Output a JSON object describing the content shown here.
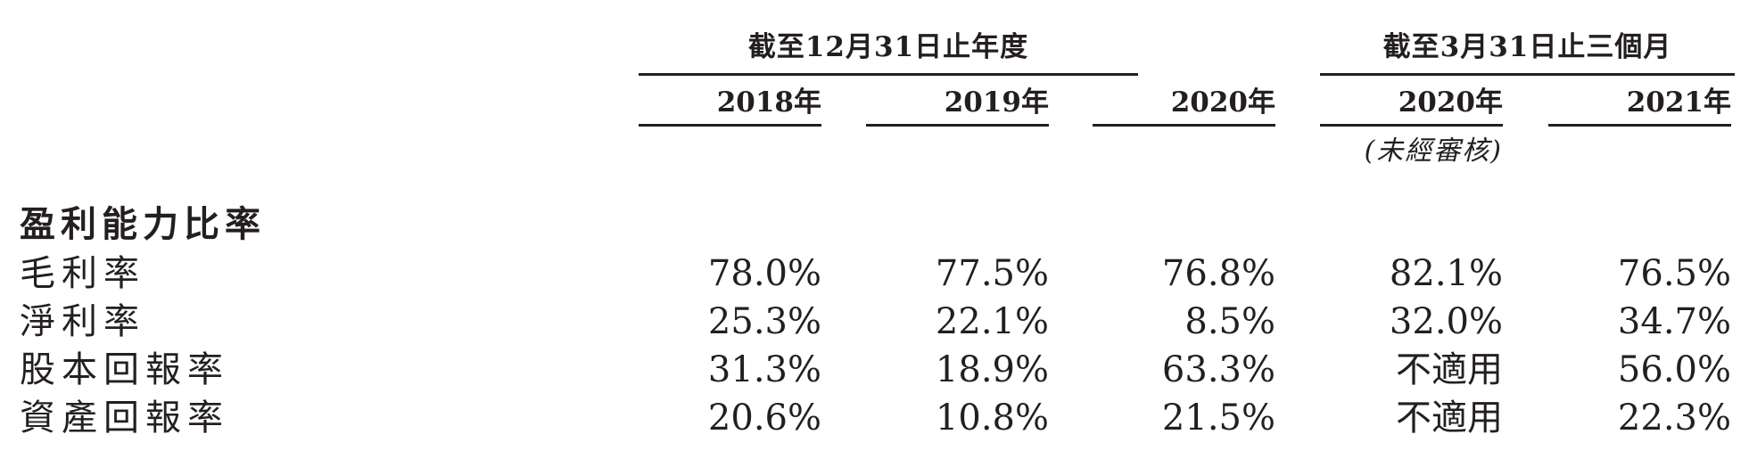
{
  "header": {
    "group_annual": "截至12月31日止年度",
    "group_quarter": "截至3月31日止三個月",
    "years": [
      "2018年",
      "2019年",
      "2020年",
      "2020年",
      "2021年"
    ],
    "unaudited_note": "(未經審核)"
  },
  "section": {
    "title": "盈利能力比率"
  },
  "rows": [
    {
      "label": "毛利率",
      "values": [
        "78.0%",
        "77.5%",
        "76.8%",
        "82.1%",
        "76.5%"
      ]
    },
    {
      "label": "淨利率",
      "values": [
        "25.3%",
        "22.1%",
        "8.5%",
        "32.0%",
        "34.7%"
      ]
    },
    {
      "label": "股本回報率",
      "values": [
        "31.3%",
        "18.9%",
        "63.3%",
        "不適用",
        "56.0%"
      ]
    },
    {
      "label": "資產回報率",
      "values": [
        "20.6%",
        "10.8%",
        "21.5%",
        "不適用",
        "22.3%"
      ]
    }
  ]
}
